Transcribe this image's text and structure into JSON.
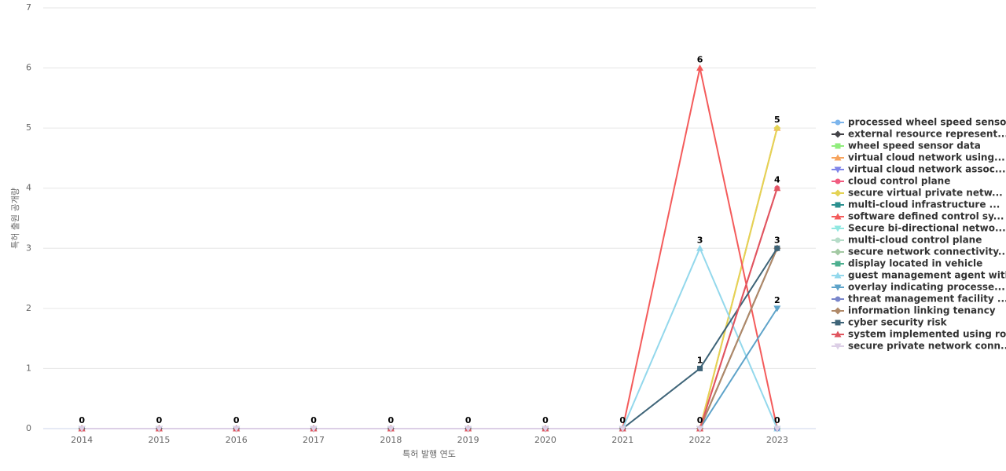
{
  "chart_data": {
    "type": "line",
    "x_label": "특허 발행 연도",
    "y_label": "특허 출원 공개량",
    "categories": [
      "2014",
      "2015",
      "2016",
      "2017",
      "2018",
      "2019",
      "2020",
      "2021",
      "2022",
      "2023"
    ],
    "ylim": [
      0,
      7
    ],
    "yticks": [
      0,
      1,
      2,
      3,
      4,
      5,
      6,
      7
    ],
    "grid": true,
    "series": [
      {
        "name": "processed wheel speed senso...",
        "color": "#7cb5ec",
        "symbol": "circle",
        "values": [
          0,
          0,
          0,
          0,
          0,
          0,
          0,
          0,
          0,
          0
        ]
      },
      {
        "name": "external resource represent...",
        "color": "#434348",
        "symbol": "diamond",
        "values": [
          0,
          0,
          0,
          0,
          0,
          0,
          0,
          0,
          0,
          3
        ]
      },
      {
        "name": "wheel speed sensor data",
        "color": "#90ed7d",
        "symbol": "square",
        "values": [
          0,
          0,
          0,
          0,
          0,
          0,
          0,
          0,
          0,
          0
        ]
      },
      {
        "name": "virtual cloud network using...",
        "color": "#f7a35c",
        "symbol": "triangle",
        "values": [
          0,
          0,
          0,
          0,
          0,
          0,
          0,
          0,
          0,
          5
        ]
      },
      {
        "name": "virtual cloud network assoc...",
        "color": "#8085e9",
        "symbol": "triangle-down",
        "values": [
          0,
          0,
          0,
          0,
          0,
          0,
          0,
          0,
          0,
          0
        ]
      },
      {
        "name": "cloud control plane",
        "color": "#f15c80",
        "symbol": "circle",
        "values": [
          0,
          0,
          0,
          0,
          0,
          0,
          0,
          0,
          0,
          4
        ]
      },
      {
        "name": "secure virtual private netw...",
        "color": "#e4d354",
        "symbol": "diamond",
        "values": [
          0,
          0,
          0,
          0,
          0,
          0,
          0,
          0,
          0,
          5
        ]
      },
      {
        "name": "multi-cloud infrastructure ...",
        "color": "#2b908f",
        "symbol": "square",
        "values": [
          0,
          0,
          0,
          0,
          0,
          0,
          0,
          0,
          0,
          0
        ]
      },
      {
        "name": "software defined control sy...",
        "color": "#f45b5b",
        "symbol": "triangle",
        "values": [
          0,
          0,
          0,
          0,
          0,
          0,
          0,
          0,
          6,
          0
        ]
      },
      {
        "name": "Secure bi-directional netwo...",
        "color": "#91e8e1",
        "symbol": "triangle-down",
        "values": [
          0,
          0,
          0,
          0,
          0,
          0,
          0,
          0,
          0,
          0
        ]
      },
      {
        "name": "multi-cloud control plane",
        "color": "#b5dcc8",
        "symbol": "circle",
        "values": [
          0,
          0,
          0,
          0,
          0,
          0,
          0,
          0,
          0,
          0
        ]
      },
      {
        "name": "secure network connectivity...",
        "color": "#a3c9a3",
        "symbol": "diamond",
        "values": [
          0,
          0,
          0,
          0,
          0,
          0,
          0,
          0,
          0,
          0
        ]
      },
      {
        "name": "display located in vehicle",
        "color": "#4caf8f",
        "symbol": "square",
        "values": [
          0,
          0,
          0,
          0,
          0,
          0,
          0,
          0,
          0,
          0
        ]
      },
      {
        "name": "guest management agent with...",
        "color": "#93d8ec",
        "symbol": "triangle",
        "values": [
          0,
          0,
          0,
          0,
          0,
          0,
          0,
          0,
          3,
          0
        ]
      },
      {
        "name": "overlay indicating processe...",
        "color": "#5ea3c9",
        "symbol": "triangle-down",
        "values": [
          0,
          0,
          0,
          0,
          0,
          0,
          0,
          0,
          0,
          2
        ]
      },
      {
        "name": "threat management facility ...",
        "color": "#7986cb",
        "symbol": "circle",
        "values": [
          0,
          0,
          0,
          0,
          0,
          0,
          0,
          0,
          0,
          0
        ]
      },
      {
        "name": "information linking tenancy",
        "color": "#b08968",
        "symbol": "diamond",
        "values": [
          0,
          0,
          0,
          0,
          0,
          0,
          0,
          0,
          0,
          3
        ]
      },
      {
        "name": "cyber security risk",
        "color": "#3e6478",
        "symbol": "square",
        "values": [
          0,
          0,
          0,
          0,
          0,
          0,
          0,
          0,
          1,
          3
        ]
      },
      {
        "name": "system implemented using ro...",
        "color": "#e0555f",
        "symbol": "triangle",
        "values": [
          0,
          0,
          0,
          0,
          0,
          0,
          0,
          0,
          0,
          4
        ]
      },
      {
        "name": "secure private network conn...",
        "color": "#dccfe6",
        "symbol": "triangle-down",
        "values": [
          0,
          0,
          0,
          0,
          0,
          0,
          0,
          0,
          0,
          0
        ]
      }
    ]
  }
}
